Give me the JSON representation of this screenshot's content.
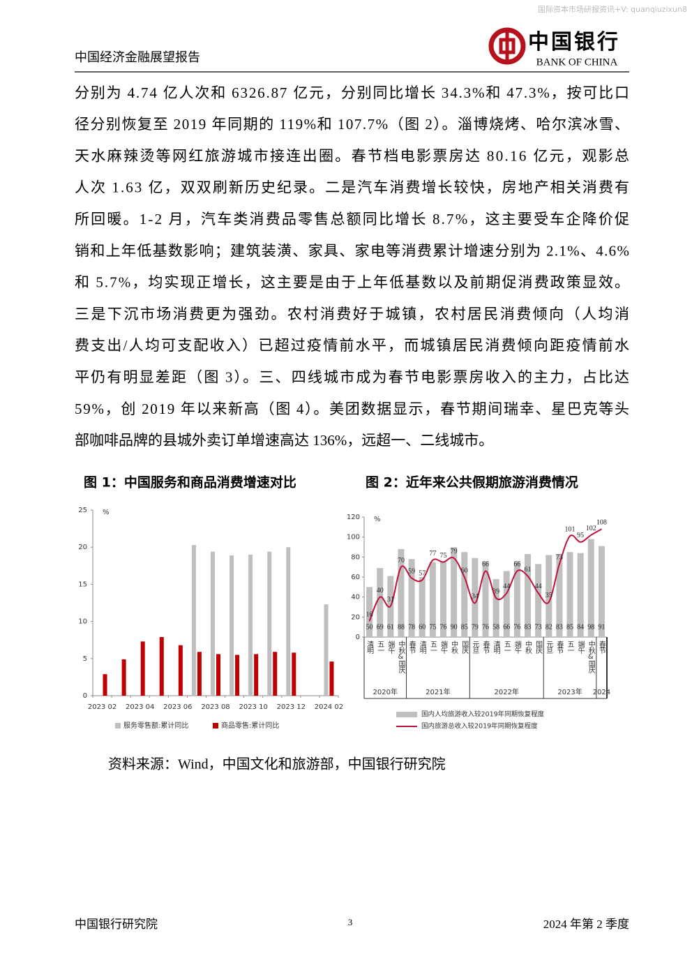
{
  "header": {
    "watermark": "国际资本市场研报资讯+V: quanqiuzixun8",
    "report_title": "中国经济金融展望报告",
    "logo_cn": "中国银行",
    "logo_en": "BANK OF CHINA"
  },
  "body": {
    "lines": [
      "分别为 4.74 亿人次和 6326.87 亿元，分别同比增长 34.3%和 47.3%，按可比口",
      "径分别恢复至 2019 年同期的 119%和 107.7%（图 2）。淄博烧烤、哈尔滨冰雪、",
      "天水麻辣烫等网红旅游城市接连出圈。春节档电影票房达 80.16 亿元，观影总",
      "人次 1.63 亿，双双刷新历史纪录。二是汽车消费增长较快，房地产相关消费有",
      "所回暖。1-2 月，汽车类消费品零售总额同比增长 8.7%，这主要受车企降价促",
      "销和上年低基数影响；建筑装潢、家具、家电等消费累计增速分别为 2.1%、4.6%",
      "和 5.7%，均实现正增长，这主要是由于上年低基数以及前期促消费政策显效。",
      "三是下沉市场消费更为强劲。农村消费好于城镇，农村居民消费倾向（人均消",
      "费支出/人均可支配收入）已超过疫情前水平，而城镇居民消费倾向距疫情前水",
      "平仍有明显差距（图 3）。三、四线城市成为春节电影票房收入的主力，占比达",
      "59%，创 2019 年以来新高（图 4）。美团数据显示，春节期间瑞幸、星巴克等头",
      "部咖啡品牌的县城外卖订单增速高达 136%，远超一、二线城市。"
    ]
  },
  "chart_data": [
    {
      "type": "bar",
      "title": "图 1：中国服务和商品消费增速对比",
      "y_unit": "%",
      "categories": [
        "2023 02",
        null,
        "2023 04",
        null,
        "2023 06",
        null,
        "2023 08",
        null,
        "2023 10",
        null,
        "2023 12",
        null,
        "2024 02"
      ],
      "series": [
        {
          "name": "服务零售额:累计同比",
          "color": "#bfbfbf",
          "values": [
            null,
            null,
            null,
            null,
            null,
            20.3,
            19.4,
            18.9,
            19.0,
            19.4,
            20.0,
            null,
            12.3
          ]
        },
        {
          "name": "商品零售:累计同比",
          "color": "#c00000",
          "values": [
            2.9,
            4.9,
            7.3,
            7.9,
            6.8,
            5.9,
            5.6,
            5.5,
            5.6,
            5.9,
            5.8,
            null,
            4.6
          ]
        }
      ],
      "ylim": [
        0,
        25
      ],
      "yticks": [
        0,
        5,
        10,
        15,
        20,
        25
      ]
    },
    {
      "type": "combo",
      "title": "图 2：近年来公共假期旅游消费情况",
      "y_unit": "%",
      "groups": [
        {
          "label": "2020年",
          "categories": [
            "清明",
            "五一",
            "端午",
            "中秋&国庆"
          ]
        },
        {
          "label": "2021年",
          "categories": [
            "春节",
            "清明",
            "五一",
            "端午",
            "中秋",
            "国庆"
          ]
        },
        {
          "label": "2022年",
          "categories": [
            "元旦",
            "春节",
            "清明",
            "五一",
            "端午",
            "中秋",
            "国庆"
          ]
        },
        {
          "label": "2023年",
          "categories": [
            "元旦",
            "春节",
            "五一",
            "端午",
            "中秋&国庆"
          ]
        },
        {
          "label": "2024",
          "categories": [
            "春节"
          ]
        }
      ],
      "series": [
        {
          "name": "国内人均旅游收入较2019年同期恢复程度",
          "type": "bar",
          "color": "#bfbfbf",
          "values": [
            50,
            69,
            61,
            88,
            78,
            60,
            75,
            76,
            90,
            85,
            79,
            76,
            58,
            66,
            76,
            83,
            73,
            82,
            83,
            85,
            84,
            98,
            91
          ]
        },
        {
          "name": "国内旅游总收入较2019年同期恢复程度",
          "type": "line",
          "color": "#c0103a",
          "values": [
            16,
            40,
            31,
            70,
            59,
            57,
            77,
            75,
            79,
            60,
            34,
            66,
            39,
            44,
            66,
            61,
            44,
            35,
            73,
            101,
            95,
            102,
            108
          ]
        }
      ],
      "ylim": [
        0,
        120
      ],
      "yticks": [
        0,
        20,
        40,
        60,
        80,
        100,
        120
      ]
    }
  ],
  "source": "资料来源：Wind，中国文化和旅游部，中国银行研究院",
  "footer": {
    "left": "中国银行研究院",
    "page": "3",
    "right": "2024 年第 2 季度"
  }
}
